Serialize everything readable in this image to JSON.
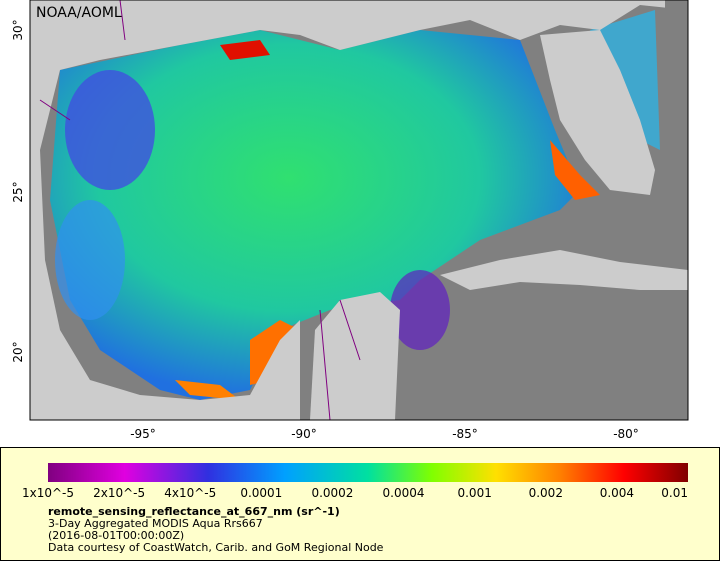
{
  "map": {
    "credit": "NOAA/AOML",
    "lat_labels": [
      "30°",
      "25°",
      "20°"
    ],
    "lon_labels": [
      "-95°",
      "-90°",
      "-85°",
      "-80°"
    ]
  },
  "legend": {
    "scale_labels": [
      "1x10^-5",
      "2x10^-5",
      "4x10^-5",
      "0.0001",
      "0.0002",
      "0.0004",
      "0.001",
      "0.002",
      "0.004",
      "0.01"
    ],
    "variable": "remote_sensing_reflectance_at_667_nm (sr^-1)",
    "lines": [
      "3-Day Aggregated MODIS Aqua Rrs667",
      "(2016-08-01T00:00:00Z)",
      "Data courtesy of CoastWatch, Carib. and GoM Regional Node"
    ]
  }
}
